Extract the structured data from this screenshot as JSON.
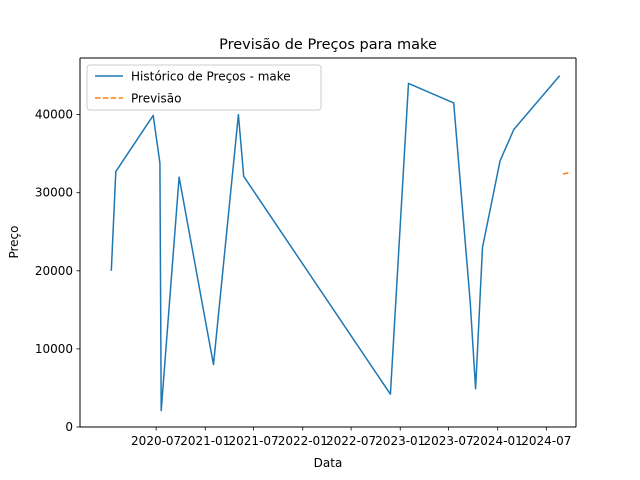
{
  "chart_data": {
    "type": "line",
    "title": "Previsão de Preços para make",
    "xlabel": "Data",
    "ylabel": "Preço",
    "xlim": [
      "2019-09-20",
      "2024-10-20"
    ],
    "ylim": [
      0,
      47250
    ],
    "x_ticks": [
      "2020-07",
      "2021-01",
      "2021-07",
      "2022-01",
      "2022-07",
      "2023-01",
      "2023-07",
      "2024-01",
      "2024-07"
    ],
    "y_ticks": [
      0,
      10000,
      20000,
      30000,
      40000
    ],
    "grid": false,
    "legend_position": "upper-left",
    "series": [
      {
        "name": "Histórico de Preços - make",
        "color": "#1f77b4",
        "style": "solid",
        "points": [
          {
            "x": "2020-01-15",
            "y": 20000
          },
          {
            "x": "2020-02-01",
            "y": 32700
          },
          {
            "x": "2020-06-20",
            "y": 39900
          },
          {
            "x": "2020-07-15",
            "y": 33800
          },
          {
            "x": "2020-07-20",
            "y": 2100
          },
          {
            "x": "2020-09-25",
            "y": 32000
          },
          {
            "x": "2021-01-10",
            "y": 12000
          },
          {
            "x": "2021-02-01",
            "y": 8000
          },
          {
            "x": "2021-05-05",
            "y": 40000
          },
          {
            "x": "2021-05-25",
            "y": 32100
          },
          {
            "x": "2022-11-25",
            "y": 4200
          },
          {
            "x": "2023-02-01",
            "y": 44000
          },
          {
            "x": "2023-07-20",
            "y": 41500
          },
          {
            "x": "2023-09-20",
            "y": 16000
          },
          {
            "x": "2023-10-10",
            "y": 4900
          },
          {
            "x": "2023-11-05",
            "y": 23000
          },
          {
            "x": "2024-01-10",
            "y": 34100
          },
          {
            "x": "2024-03-01",
            "y": 38100
          },
          {
            "x": "2024-08-20",
            "y": 45000
          }
        ]
      },
      {
        "name": "Previsão",
        "color": "#ff7f0e",
        "style": "dashed",
        "points": [
          {
            "x": "2024-09-01",
            "y": 32400
          },
          {
            "x": "2024-09-30",
            "y": 32600
          }
        ]
      }
    ]
  }
}
